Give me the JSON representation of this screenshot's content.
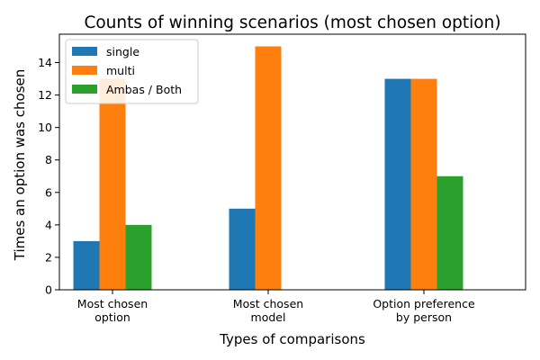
{
  "chart_data": {
    "type": "bar",
    "title": "Counts of winning scenarios (most chosen option)",
    "xlabel": "Types of comparisons",
    "ylabel": "Times an option was chosen",
    "categories": [
      [
        "Most chosen",
        "option"
      ],
      [
        "Most chosen",
        "model"
      ],
      [
        "Option preference",
        "by person"
      ]
    ],
    "series": [
      {
        "name": "single",
        "values": [
          3,
          5,
          13
        ],
        "color": "#1f77b4"
      },
      {
        "name": "multi",
        "values": [
          13,
          15,
          13
        ],
        "color": "#ff7f0e"
      },
      {
        "name": "Ambas / Both",
        "values": [
          4,
          0,
          7
        ],
        "color": "#2ca02c"
      }
    ],
    "ylim": [
      0,
      15.75
    ],
    "yticks": [
      0,
      2,
      4,
      6,
      8,
      10,
      12,
      14
    ],
    "legend": "top-left",
    "grid": false
  }
}
